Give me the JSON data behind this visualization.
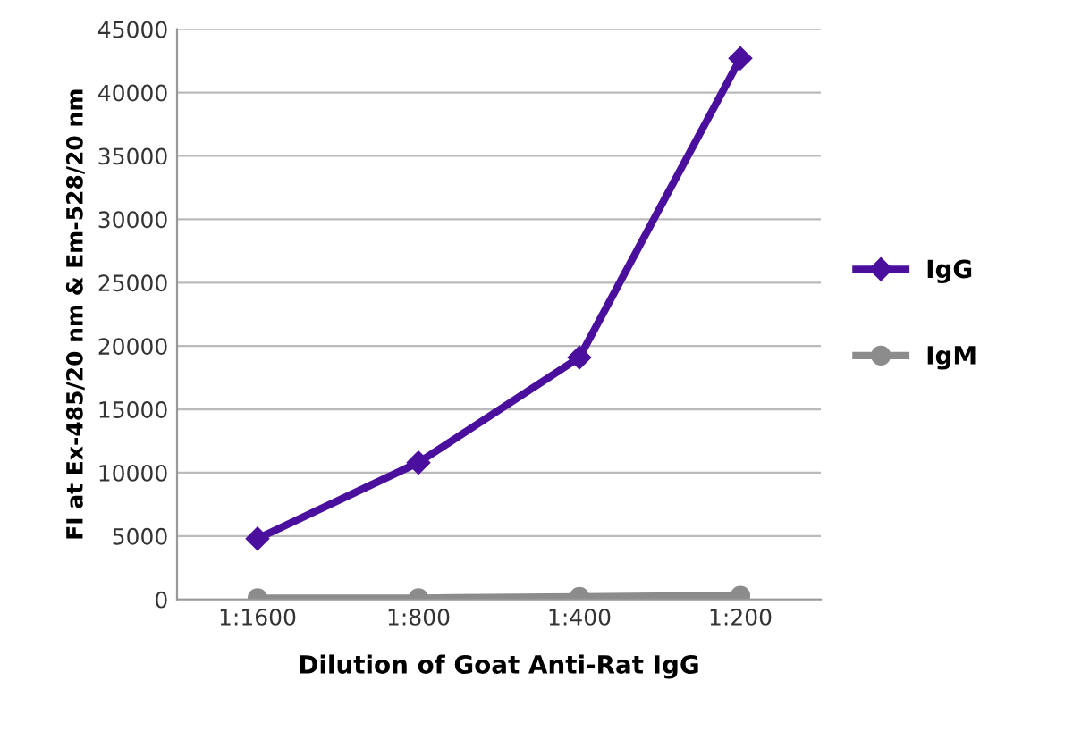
{
  "chart_data": {
    "type": "line",
    "xlabel": "Dilution of Goat Anti-Rat IgG",
    "ylabel": "FI at Ex-485/20 nm & Em-528/20 nm",
    "categories": [
      "1:1600",
      "1:800",
      "1:400",
      "1:200"
    ],
    "series": [
      {
        "name": "IgG",
        "color": "#4b0f9e",
        "marker": "diamond",
        "values": [
          4800,
          10800,
          19100,
          42700
        ]
      },
      {
        "name": "IgM",
        "color": "#8c8c8c",
        "marker": "circle",
        "values": [
          100,
          100,
          200,
          300
        ]
      }
    ],
    "ylim": [
      0,
      45000
    ],
    "yticks": [
      0,
      5000,
      10000,
      15000,
      20000,
      25000,
      30000,
      35000,
      40000,
      45000
    ],
    "grid": "y",
    "legend": "right",
    "line_style": "solid"
  }
}
